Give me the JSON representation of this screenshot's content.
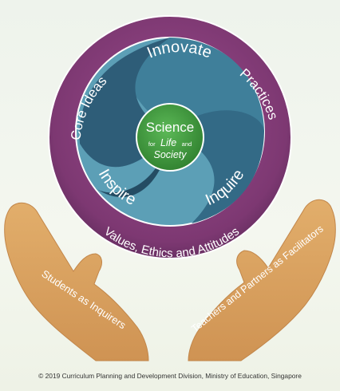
{
  "diagram": {
    "outer_ring_labels": {
      "left": "Core Ideas",
      "right": "Practices",
      "bottom": "Values, Ethics and Attitudes"
    },
    "inner_labels": {
      "top": "Innovate",
      "left": "Inspire",
      "right": "Inquire"
    },
    "center": {
      "line1": "Science",
      "line2_prefix": "for",
      "line2_emph": "Life",
      "line2_suffix": "and",
      "line3": "Society"
    },
    "hands": {
      "left": "Students as Inquirers",
      "right": "Teachers and Partners as Facilitators"
    }
  },
  "footer": {
    "copyright": "© 2019 Curriculum Planning and Development Division, Ministry of Education, Singapore"
  },
  "colors": {
    "outer_ring": "#8a3f7c",
    "outer_ring_dark": "#5e2a5a",
    "inner_dark": "#2e5d78",
    "inner_mid": "#3f7f9a",
    "inner_light": "#5c9fb6",
    "center": "#3f9a3c",
    "hand": "#d9a25f",
    "hand_dark": "#c2864a"
  }
}
